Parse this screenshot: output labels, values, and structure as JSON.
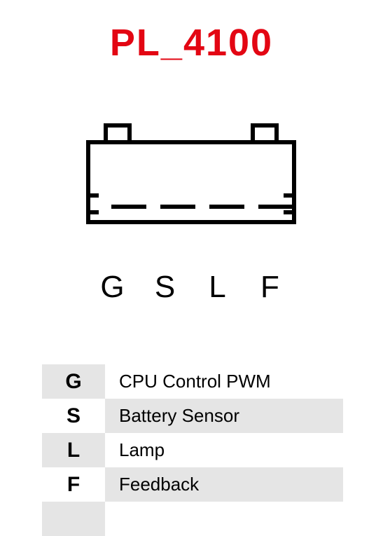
{
  "title": {
    "text": "PL_4100",
    "color": "#E30613",
    "fontsize": 54
  },
  "connector": {
    "body_stroke": "#000000",
    "body_stroke_width": 6,
    "pin_count": 4,
    "pin_labels": [
      "G",
      "S",
      "L",
      "F"
    ],
    "label_fontsize": 44,
    "label_color": "#000000"
  },
  "legend": {
    "rows": [
      {
        "key": "G",
        "value": "CPU Control PWM"
      },
      {
        "key": "S",
        "value": "Battery Sensor"
      },
      {
        "key": "L",
        "value": "Lamp"
      },
      {
        "key": "F",
        "value": "Feedback"
      },
      {
        "key": "",
        "value": ""
      }
    ],
    "stripe_a": "#E5E5E5",
    "stripe_b": "#FFFFFF",
    "key_fontsize": 30,
    "value_fontsize": 26,
    "text_color": "#000000"
  },
  "background_color": "#FFFFFF"
}
